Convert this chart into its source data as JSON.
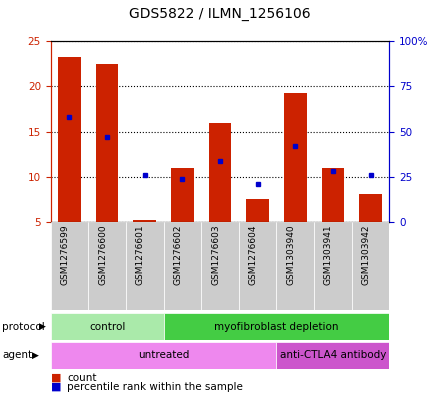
{
  "title": "GDS5822 / ILMN_1256106",
  "samples": [
    "GSM1276599",
    "GSM1276600",
    "GSM1276601",
    "GSM1276602",
    "GSM1276603",
    "GSM1276604",
    "GSM1303940",
    "GSM1303941",
    "GSM1303942"
  ],
  "counts": [
    23.3,
    22.5,
    5.2,
    11.0,
    16.0,
    7.5,
    19.3,
    11.0,
    8.1
  ],
  "percentile_pct": [
    58,
    47,
    26,
    24,
    34,
    21,
    42,
    28,
    26
  ],
  "ylim_left": [
    5,
    25
  ],
  "ylim_right": [
    0,
    100
  ],
  "yticks_left": [
    5,
    10,
    15,
    20,
    25
  ],
  "yticks_right": [
    0,
    25,
    50,
    75,
    100
  ],
  "yticklabels_right": [
    "0",
    "25",
    "50",
    "75",
    "100%"
  ],
  "bar_color": "#cc2200",
  "dot_color": "#0000cc",
  "bar_width": 0.6,
  "protocol_groups": [
    {
      "label": "control",
      "start": 0,
      "end": 3,
      "color": "#aaeaaa"
    },
    {
      "label": "myofibroblast depletion",
      "start": 3,
      "end": 9,
      "color": "#44cc44"
    }
  ],
  "agent_groups": [
    {
      "label": "untreated",
      "start": 0,
      "end": 6,
      "color": "#ee88ee"
    },
    {
      "label": "anti-CTLA4 antibody",
      "start": 6,
      "end": 9,
      "color": "#cc55cc"
    }
  ],
  "left_axis_color": "#cc2200",
  "right_axis_color": "#0000cc",
  "label_fontsize": 7.5,
  "tick_fontsize": 7.5,
  "title_fontsize": 10,
  "sample_fontsize": 6.5
}
